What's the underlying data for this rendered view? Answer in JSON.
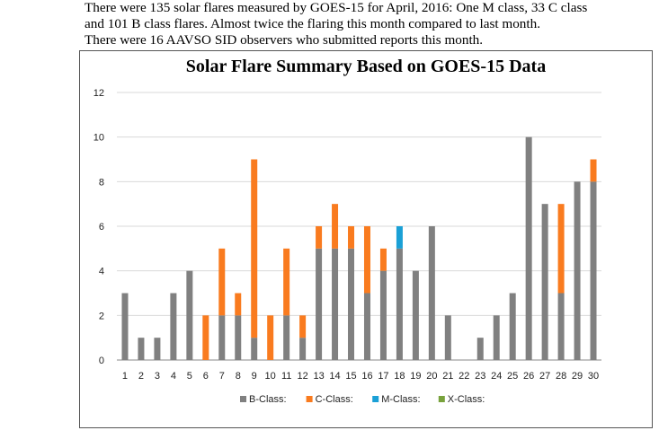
{
  "intro": {
    "line1": "There were 135 solar flares measured by GOES-15 for April, 2016:  One M class, 33 C class",
    "line2": "and 101 B class flares. Almost twice the flaring this month compared to last month.",
    "line3": "There were 16 AAVSO SID observers who submitted reports this month."
  },
  "chart_data": {
    "type": "bar",
    "stacked": true,
    "title": "Solar Flare Summary Based on GOES-15 Data",
    "xlabel": "",
    "ylabel": "",
    "ylim": [
      0,
      12
    ],
    "yticks": [
      0,
      2,
      4,
      6,
      8,
      10,
      12
    ],
    "grid": true,
    "legend_position": "bottom",
    "categories": [
      "1",
      "2",
      "3",
      "4",
      "5",
      "6",
      "7",
      "8",
      "9",
      "10",
      "11",
      "12",
      "13",
      "14",
      "15",
      "16",
      "17",
      "18",
      "19",
      "20",
      "21",
      "22",
      "23",
      "24",
      "25",
      "26",
      "27",
      "28",
      "29",
      "30"
    ],
    "series": [
      {
        "name": "B-Class:",
        "color": "#808080",
        "values": [
          3,
          1,
          1,
          3,
          4,
          0,
          2,
          2,
          1,
          0,
          2,
          1,
          5,
          5,
          5,
          3,
          4,
          5,
          4,
          6,
          2,
          0,
          1,
          2,
          3,
          10,
          7,
          3,
          8,
          8
        ]
      },
      {
        "name": "C-Class:",
        "color": "#f97b1f",
        "values": [
          0,
          0,
          0,
          0,
          0,
          2,
          3,
          1,
          8,
          2,
          3,
          1,
          1,
          2,
          1,
          3,
          1,
          0,
          0,
          0,
          0,
          0,
          0,
          0,
          0,
          0,
          0,
          4,
          0,
          1
        ]
      },
      {
        "name": "M-Class:",
        "color": "#1aa0d6",
        "values": [
          0,
          0,
          0,
          0,
          0,
          0,
          0,
          0,
          0,
          0,
          0,
          0,
          0,
          0,
          0,
          0,
          0,
          1,
          0,
          0,
          0,
          0,
          0,
          0,
          0,
          0,
          0,
          0,
          0,
          0
        ]
      },
      {
        "name": "X-Class:",
        "color": "#78a23c",
        "values": [
          0,
          0,
          0,
          0,
          0,
          0,
          0,
          0,
          0,
          0,
          0,
          0,
          0,
          0,
          0,
          0,
          0,
          0,
          0,
          0,
          0,
          0,
          0,
          0,
          0,
          0,
          0,
          0,
          0,
          0
        ]
      }
    ]
  }
}
